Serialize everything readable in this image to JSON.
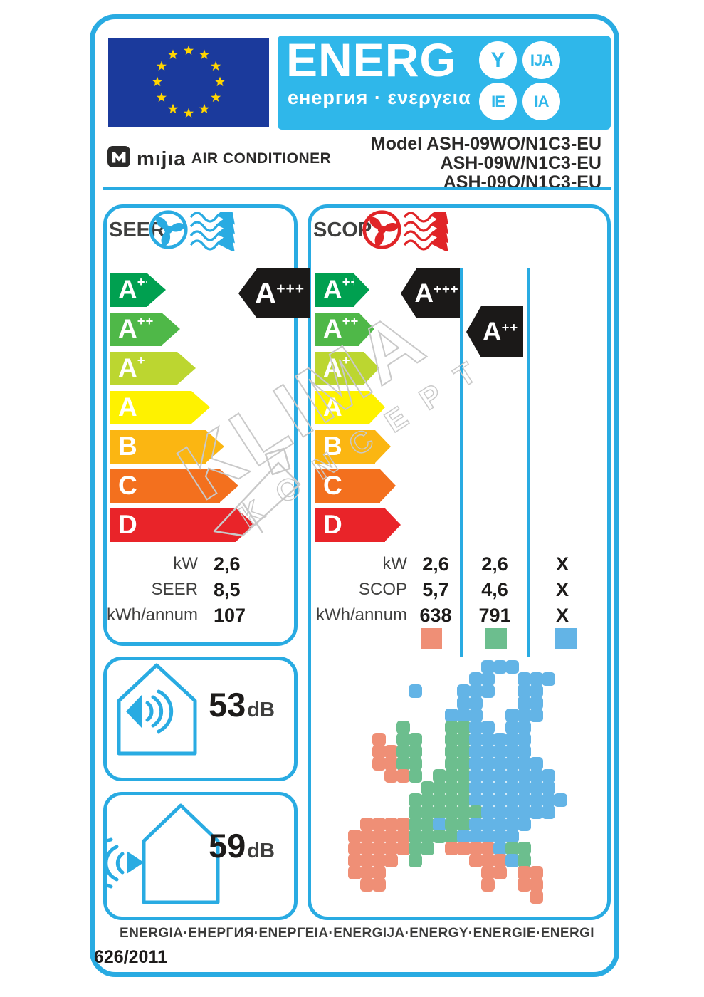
{
  "header": {
    "title": "ENERG",
    "subtitle": "енергия · ενεργεια",
    "suffix_circles": [
      "Y",
      "IJA",
      "IE",
      "IA"
    ],
    "brand": "mıjıa",
    "brand_product": "AIR CONDITIONER",
    "model_lines": [
      "Model ASH-09WO/N1C3-EU",
      "ASH-09W/N1C3-EU",
      "ASH-09O/N1C3-EU"
    ]
  },
  "classes": [
    {
      "label": "A",
      "sup": "+++",
      "color": "#00A050"
    },
    {
      "label": "A",
      "sup": "++",
      "color": "#4FB848"
    },
    {
      "label": "A",
      "sup": "+",
      "color": "#BCD630"
    },
    {
      "label": "A",
      "sup": "",
      "color": "#FEF200"
    },
    {
      "label": "B",
      "sup": "",
      "color": "#FBB612"
    },
    {
      "label": "C",
      "sup": "",
      "color": "#F3701E"
    },
    {
      "label": "D",
      "sup": "",
      "color": "#E92429"
    }
  ],
  "seer": {
    "label": "SEER",
    "indicator": {
      "label": "A",
      "sup": "+++"
    },
    "rows": [
      {
        "label": "kW",
        "value": "2,6"
      },
      {
        "label": "SEER",
        "value": "8,5"
      },
      {
        "label": "kWh/annum",
        "value": "107"
      }
    ]
  },
  "scop": {
    "label": "SCOP",
    "indicator_warmer": {
      "label": "A",
      "sup": "+++"
    },
    "indicator_average": {
      "label": "A",
      "sup": "++"
    },
    "rows": [
      {
        "label": "kW",
        "warmer": "2,6",
        "average": "2,6",
        "colder": "X"
      },
      {
        "label": "SCOP",
        "warmer": "5,7",
        "average": "4,6",
        "colder": "X"
      },
      {
        "label": "kWh/annum",
        "warmer": "638",
        "average": "791",
        "colder": "X"
      }
    ]
  },
  "noise": {
    "indoor": {
      "value": "53",
      "unit": "dB"
    },
    "outdoor": {
      "value": "59",
      "unit": "dB"
    }
  },
  "footer": {
    "energy_words": "ENERGIA·ЕНЕРГИЯ·ΕΝΕΡΓΕΙΑ·ENERGIJA·ENERGY·ENERGIE·ENERGI",
    "regulation": "626/2011"
  },
  "watermark": {
    "line1": "KLIMA",
    "line2": "KONCEPT"
  },
  "colors": {
    "frame_blue": "#29ABE2",
    "energ_background": "#2FB7EA",
    "eu_flag_blue": "#1b3a9c",
    "star_yellow": "#FFD500",
    "indicator_black": "#1B1918",
    "scop_fan_red": "#E02427"
  },
  "map": {
    "colors": {
      "warmer": "#EF8F76",
      "average": "#6CBE8E",
      "colder": "#63B4E6"
    },
    "grid": [
      "...........BBB......",
      "..........BB..BBB...",
      ".....B...BBB..BB....",
      ".........BB...BB....",
      "........BBB..BBB....",
      "....G...GGBB.BB.....",
      "..O.GG..GGBBBBB.....",
      "..OOGG..GGBBBBB.....",
      "..OOGG..GGBBBBBB....",
      "...OOG.GGGBBBBBBB...",
      "......GGGGBBBBBBB...",
      ".....GGGGGBBBBBBBB..",
      ".....GGGGGGBBBBBB...",
      ".OOOOGGBGGBBBBB.....",
      "OOOOOGGGGBBBBB......",
      "OOOOOGG.OOOOBGG.....",
      "OOOO.G....OOOBG.....",
      "OOO........OO.OO....",
      ".OO........O..OO....",
      "...............O...."
    ]
  }
}
